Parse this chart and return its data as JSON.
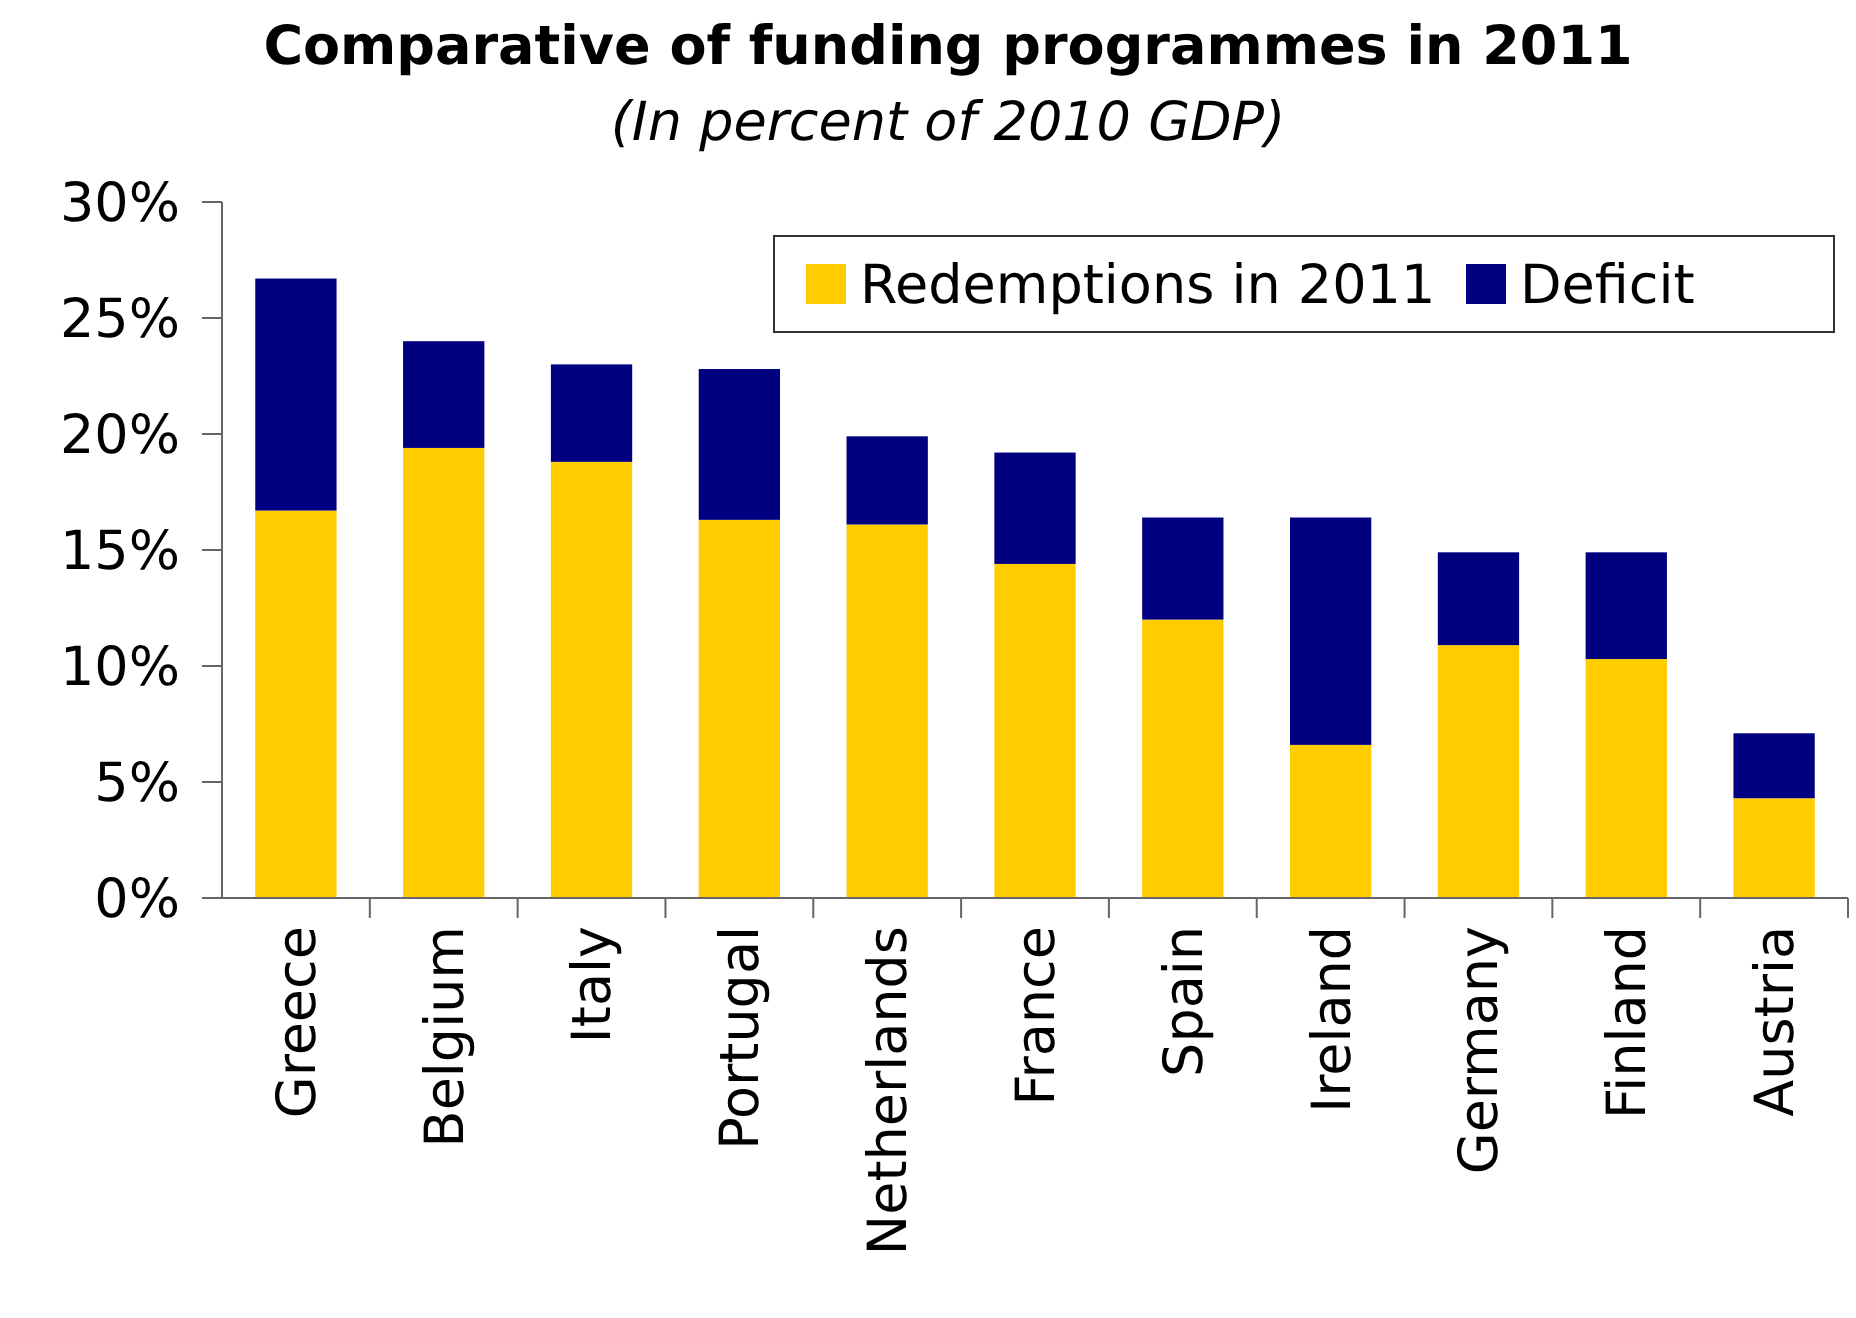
{
  "chart_data": {
    "type": "bar",
    "title": "Comparative of funding programmes in 2011",
    "subtitle": "(In percent of 2010 GDP)",
    "stacked": true,
    "categories": [
      "Greece",
      "Belgium",
      "Italy",
      "Portugal",
      "Netherlands",
      "France",
      "Spain",
      "Ireland",
      "Germany",
      "Finland",
      "Austria"
    ],
    "series": [
      {
        "name": "Redemptions in 2011",
        "color": "#ffcc00",
        "values": [
          16.7,
          19.4,
          18.8,
          16.3,
          16.1,
          14.4,
          12.0,
          6.6,
          10.9,
          10.3,
          4.3
        ]
      },
      {
        "name": "Deficit",
        "color": "#000080",
        "values": [
          10.0,
          4.6,
          4.2,
          6.5,
          3.8,
          4.8,
          4.4,
          9.8,
          4.0,
          4.6,
          2.8
        ]
      }
    ],
    "ylim": [
      0,
      30
    ],
    "yticks": [
      {
        "value": 0,
        "label": "0%"
      },
      {
        "value": 5,
        "label": "5%"
      },
      {
        "value": 10,
        "label": "10%"
      },
      {
        "value": 15,
        "label": "15%"
      },
      {
        "value": 20,
        "label": "20%"
      },
      {
        "value": 25,
        "label": "25%"
      },
      {
        "value": 30,
        "label": "30%"
      }
    ],
    "grid": false,
    "legend": "top right"
  }
}
